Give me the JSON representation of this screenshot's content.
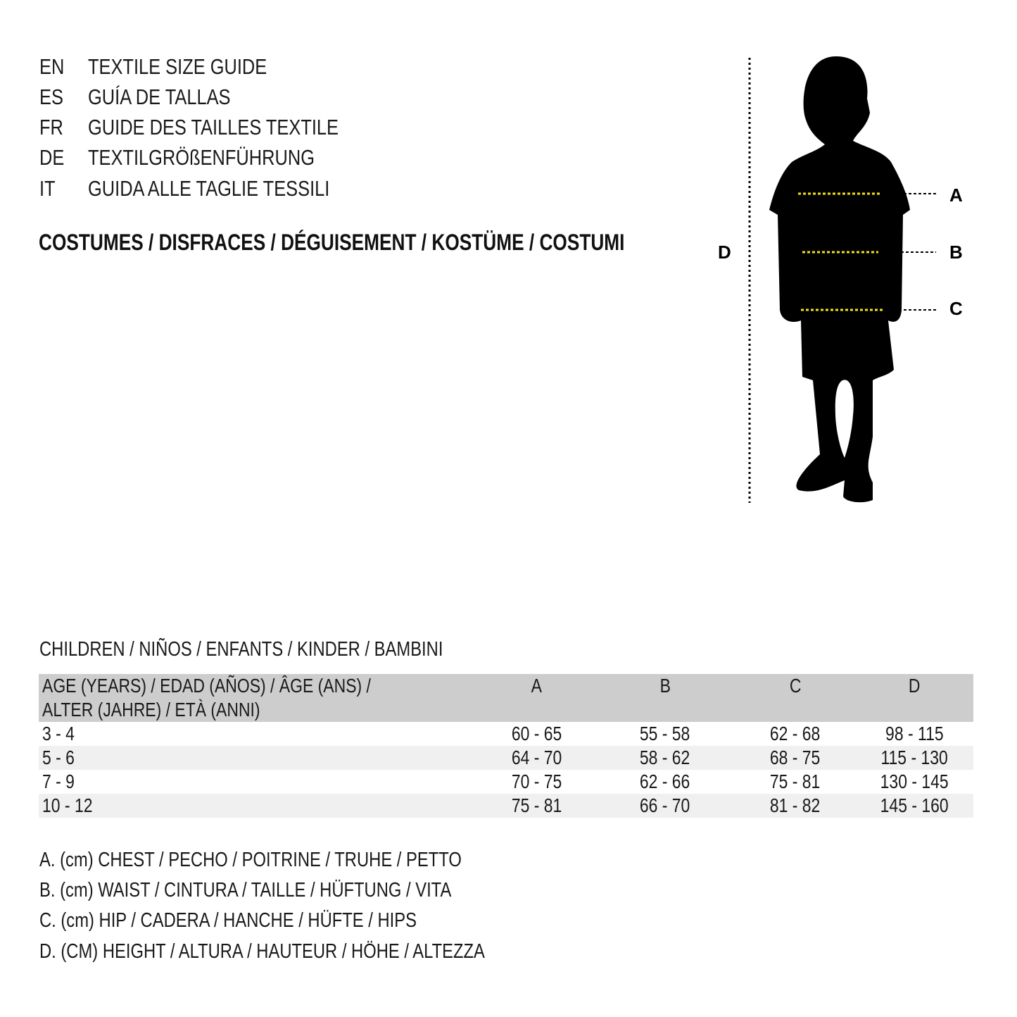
{
  "languages": [
    {
      "code": "EN",
      "title": "TEXTILE SIZE GUIDE"
    },
    {
      "code": "ES",
      "title": "GUÍA DE TALLAS"
    },
    {
      "code": "FR",
      "title": "GUIDE DES TAILLES TEXTILE"
    },
    {
      "code": "DE",
      "title": "TEXTILGRÖßENFÜHRUNG"
    },
    {
      "code": "IT",
      "title": "GUIDA ALLE TAGLIE TESSILI"
    }
  ],
  "section_heading": "COSTUMES / DISFRACES / DÉGUISEMENT / KOSTÜME / COSTUMI",
  "diagram": {
    "labels": {
      "a": "A",
      "b": "B",
      "c": "C",
      "d": "D"
    },
    "colors": {
      "silhouette": "#000000",
      "measure_line": "#f2e21b",
      "leader_line": "#000000"
    }
  },
  "children_label": "CHILDREN / NIÑOS / ENFANTS / KINDER / BAMBINI",
  "table": {
    "headers": [
      "AGE (YEARS) / EDAD (AÑOS) / ÂGE (ANS) / ALTER (JAHRE) / ETÀ (ANNI)",
      "A",
      "B",
      "C",
      "D"
    ],
    "header_bg": "#cdcdcd",
    "stripe_bg": "#f0f0f0",
    "rows": [
      [
        "3 - 4",
        "60 - 65",
        "55 - 58",
        "62 - 68",
        "98 - 115"
      ],
      [
        "5 - 6",
        "64 - 70",
        "58 - 62",
        "68 - 75",
        "115 - 130"
      ],
      [
        "7 - 9",
        "70 - 75",
        "62 - 66",
        "75 - 81",
        "130 - 145"
      ],
      [
        "10 - 12",
        "75 - 81",
        "66 - 70",
        "81 - 82",
        "145 - 160"
      ]
    ]
  },
  "legend": [
    "A. (cm) CHEST / PECHO / POITRINE / TRUHE / PETTO",
    "B. (cm) WAIST / CINTURA / TAILLE / HÜFTUNG / VITA",
    "C. (cm) HIP / CADERA / HANCHE / HÜFTE / HIPS",
    "D. (CM) HEIGHT / ALTURA / HAUTEUR / HÖHE / ALTEZZA"
  ]
}
